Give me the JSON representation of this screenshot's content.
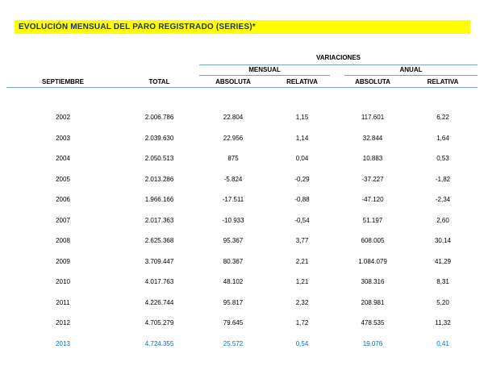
{
  "title": "EVOLUCIÓN MENSUAL DEL PARO REGISTRADO (SERIES)*",
  "colors": {
    "title_background": "#ffff00",
    "title_text": "#1f3260",
    "rule_line": "#7da0c4",
    "highlight_row_text": "#0070c0"
  },
  "table": {
    "group_header": "VARIACIONES",
    "subgroups": [
      "MENSUAL",
      "ANUAL"
    ],
    "columns": [
      "SEPTIEMBRE",
      "TOTAL",
      "ABSOLUTA",
      "RELATIVA",
      "ABSOLUTA",
      "RELATIVA"
    ],
    "rows": [
      {
        "year": "2002",
        "total": "2.006.786",
        "m_abs": "22.804",
        "m_rel": "1,15",
        "a_abs": "117.601",
        "a_rel": "6,22",
        "highlight": false
      },
      {
        "year": "2003",
        "total": "2.039.630",
        "m_abs": "22.956",
        "m_rel": "1,14",
        "a_abs": "32.844",
        "a_rel": "1,64",
        "highlight": false
      },
      {
        "year": "2004",
        "total": "2.050.513",
        "m_abs": "875",
        "m_rel": "0,04",
        "a_abs": "10.883",
        "a_rel": "0,53",
        "highlight": false
      },
      {
        "year": "2005",
        "total": "2.013.286",
        "m_abs": "-5.824",
        "m_rel": "-0,29",
        "a_abs": "-37.227",
        "a_rel": "-1,82",
        "highlight": false
      },
      {
        "year": "2006",
        "total": "1.966.166",
        "m_abs": "-17.511",
        "m_rel": "-0,88",
        "a_abs": "-47.120",
        "a_rel": "-2,34",
        "highlight": false
      },
      {
        "year": "2007",
        "total": "2.017.363",
        "m_abs": "-10.933",
        "m_rel": "-0,54",
        "a_abs": "51.197",
        "a_rel": "2,60",
        "highlight": false
      },
      {
        "year": "2008",
        "total": "2.625.368",
        "m_abs": "95.367",
        "m_rel": "3,77",
        "a_abs": "608.005",
        "a_rel": "30,14",
        "highlight": false
      },
      {
        "year": "2009",
        "total": "3.709.447",
        "m_abs": "80.367",
        "m_rel": "2,21",
        "a_abs": "1.084.079",
        "a_rel": "41,29",
        "highlight": false
      },
      {
        "year": "2010",
        "total": "4.017.763",
        "m_abs": "48.102",
        "m_rel": "1,21",
        "a_abs": "308.316",
        "a_rel": "8,31",
        "highlight": false
      },
      {
        "year": "2011",
        "total": "4.226.744",
        "m_abs": "95.817",
        "m_rel": "2,32",
        "a_abs": "208.981",
        "a_rel": "5,20",
        "highlight": false
      },
      {
        "year": "2012",
        "total": "4.705.279",
        "m_abs": "79.645",
        "m_rel": "1,72",
        "a_abs": "478.535",
        "a_rel": "11,32",
        "highlight": false
      },
      {
        "year": "2013",
        "total": "4.724.355",
        "m_abs": "25.572",
        "m_rel": "0,54",
        "a_abs": "19.076",
        "a_rel": "0,41",
        "highlight": true
      }
    ]
  }
}
